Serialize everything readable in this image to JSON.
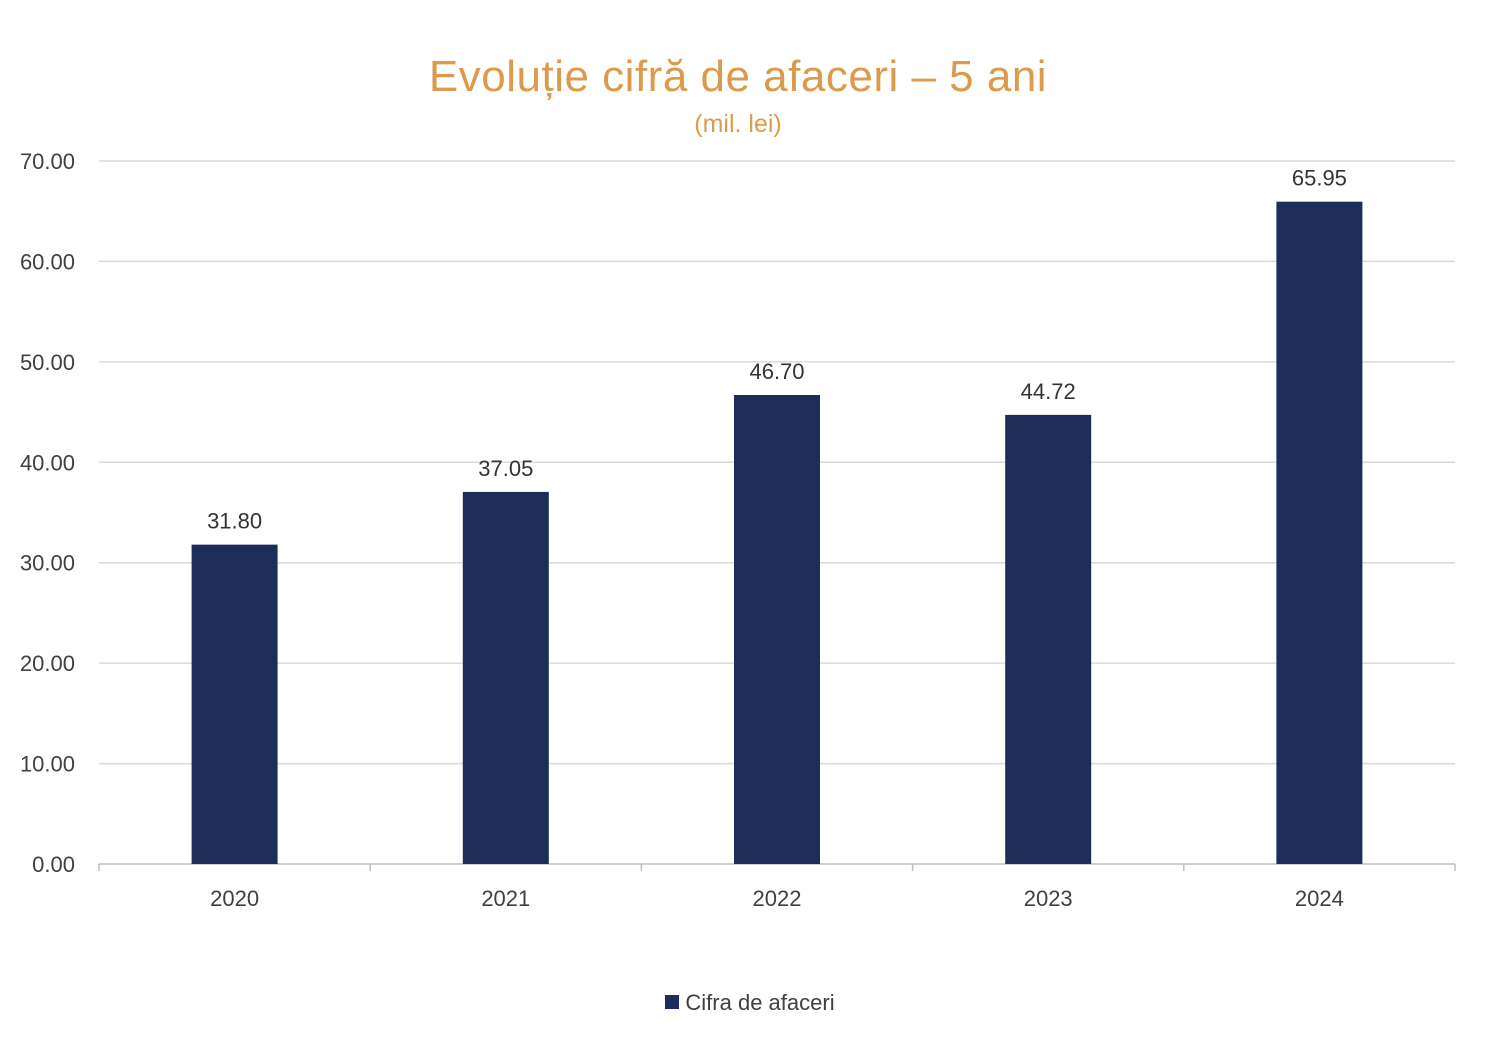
{
  "chart_data": {
    "type": "bar",
    "title": "Evoluție cifră de afaceri – 5 ani",
    "subtitle": "(mil. lei)",
    "categories": [
      "2020",
      "2021",
      "2022",
      "2023",
      "2024"
    ],
    "series": [
      {
        "name": "Cifra de afaceri",
        "values": [
          31.8,
          37.05,
          46.7,
          44.72,
          65.95
        ],
        "value_labels": [
          "31.80",
          "37.05",
          "46.70",
          "44.72",
          "65.95"
        ],
        "color": "#1c2e57"
      }
    ],
    "xlabel": "",
    "ylabel": "",
    "ylim": [
      0,
      70
    ],
    "yticks": [
      "0.00",
      "10.00",
      "20.00",
      "30.00",
      "40.00",
      "50.00",
      "60.00",
      "70.00"
    ],
    "grid": true,
    "legend_position": "bottom"
  },
  "colors": {
    "title": "#dc9a4c",
    "bar": "#1c2e57",
    "grid": "#d9d9d9"
  }
}
